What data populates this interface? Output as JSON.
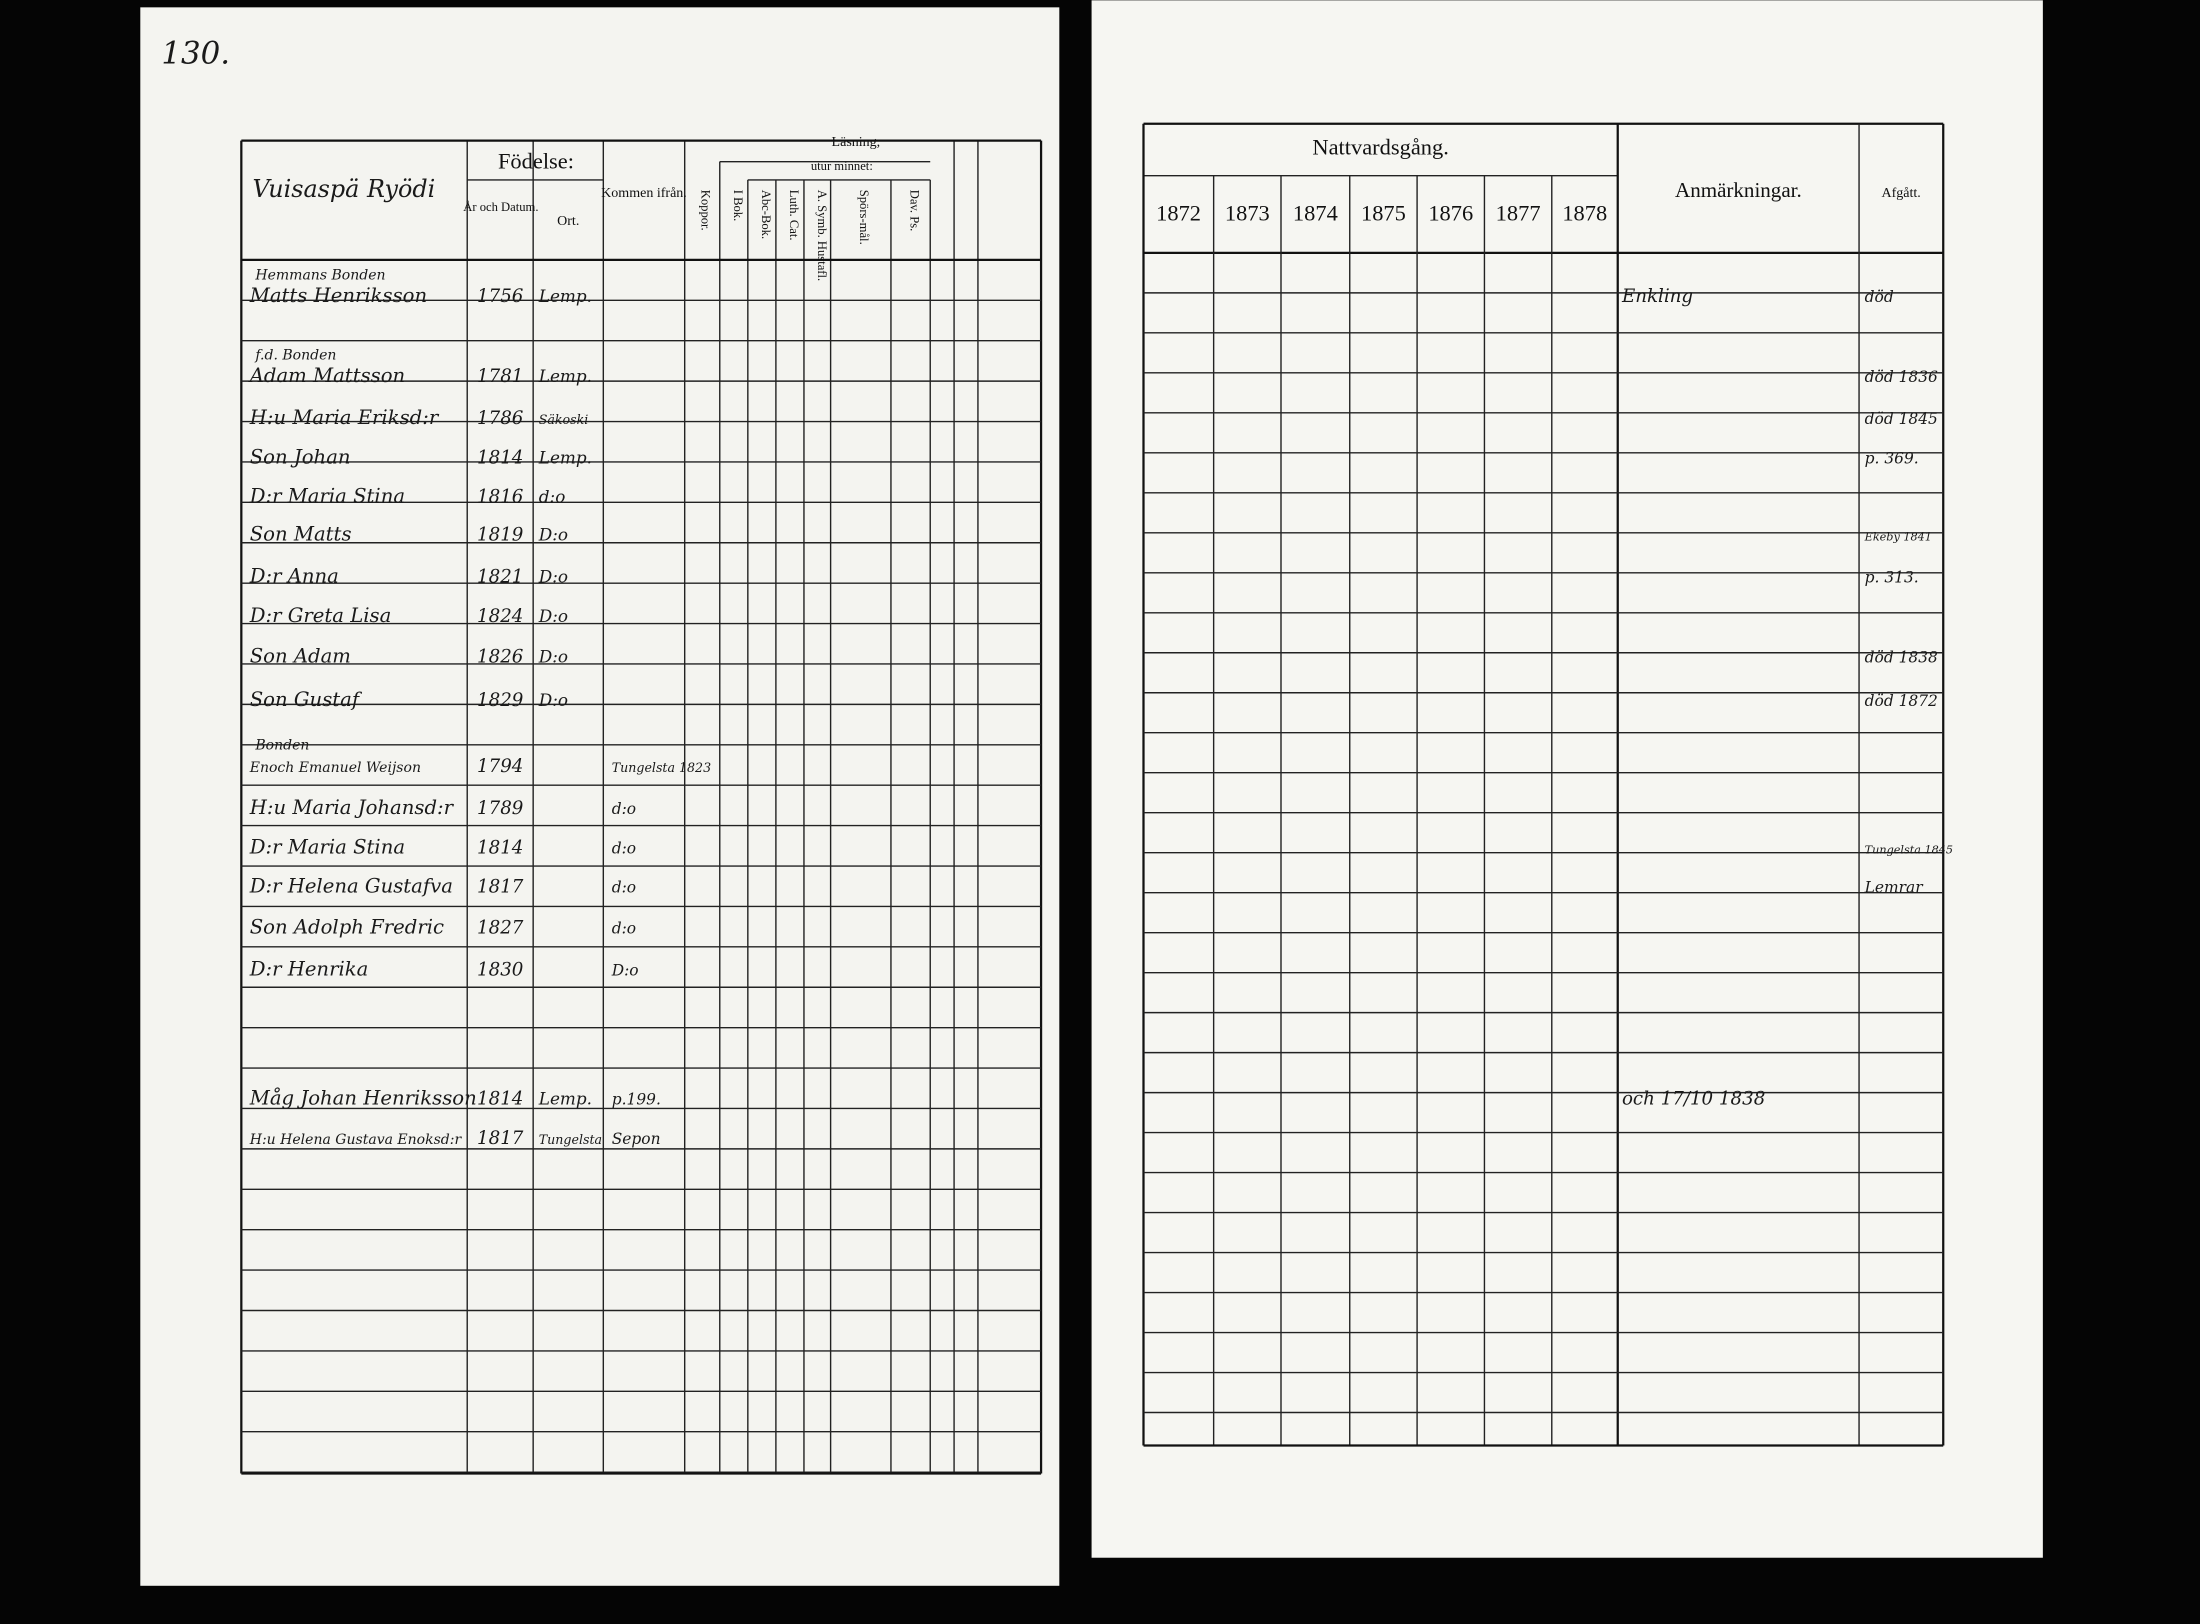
{
  "page_number": "130.",
  "left": {
    "place": "Vuisaspä Ryödi",
    "headers": {
      "birth": "Födelse:",
      "date": "År och Datum.",
      "ort": "Ort.",
      "from": "Kommen ifrån.",
      "koppor": "Koppor.",
      "reading": "Läsning,",
      "memory": "utur minnet:",
      "ibok": "I Bok.",
      "abc": "Abc-Bok.",
      "luth": "Luth. Cat.",
      "symb": "A. Symb. Hustafl.",
      "spors": "Spörs-mål.",
      "dav": "Dav. Ps."
    },
    "rows": [
      {
        "title": "Hemmans Bonden",
        "name": "Matts Henriksson",
        "year": "1756",
        "place": "Lemp."
      },
      {
        "title": "f.d. Bonden",
        "name": "Adam Mattsson",
        "year": "1781",
        "place": "Lemp."
      },
      {
        "name": "H:u Maria Eriksd:r",
        "year": "1786",
        "place": "Säkoski"
      },
      {
        "name": "Son Johan",
        "year": "1814",
        "place": "Lemp."
      },
      {
        "name": "D:r Maria Stina",
        "year": "1816",
        "place": "d:o"
      },
      {
        "name": "Son Matts",
        "year": "1819",
        "place": "D:o"
      },
      {
        "name": "D:r Anna",
        "year": "1821",
        "place": "D:o"
      },
      {
        "name": "D:r Greta Lisa",
        "year": "1824",
        "place": "D:o"
      },
      {
        "name": "Son Adam",
        "year": "1826",
        "place": "D:o"
      },
      {
        "name": "Son Gustaf",
        "year": "1829",
        "place": "D:o"
      },
      {
        "title": "Bonden",
        "name": "Enoch Emanuel Weijson",
        "year": "1794",
        "from": "Tungelsta 1823"
      },
      {
        "name": "H:u Maria Johansd:r",
        "year": "1789",
        "from": "d:o"
      },
      {
        "name": "D:r Maria Stina",
        "year": "1814",
        "from": "d:o"
      },
      {
        "name": "D:r Helena Gustafva",
        "year": "1817",
        "from": "d:o"
      },
      {
        "name": "Son Adolph Fredric",
        "year": "1827",
        "from": "d:o"
      },
      {
        "name": "D:r Henrika",
        "year": "1830",
        "from": "D:o"
      },
      {
        "name": "Måg Johan Henriksson",
        "year": "1814",
        "place": "Lemp.",
        "from": "p.199."
      },
      {
        "name": "H:u Helena Gustava Enoksd:r",
        "year": "1817",
        "place": "Tungelsta",
        "from": "Sepon"
      }
    ]
  },
  "right": {
    "title": "Nattvardsgång.",
    "years": [
      "1872",
      "1873",
      "1874",
      "1875",
      "1876",
      "1877",
      "1878"
    ],
    "remarks_header": "Anmärkningar.",
    "left_header": "Afgått.",
    "rows": [
      {
        "remark": "Enkling",
        "left": "död"
      },
      {
        "left": "död 1836"
      },
      {
        "left": "död 1845"
      },
      {
        "left": "p. 369."
      },
      {},
      {
        "left": "Ekeby 1841"
      },
      {
        "left": "p. 313."
      },
      {},
      {
        "left": "död 1838"
      },
      {
        "left": "död 1872"
      },
      {},
      {},
      {
        "left": "Tungelsta 1845"
      },
      {
        "left": "Lemrar"
      },
      {},
      {},
      {
        "remark": "och 17/10 1838"
      },
      {}
    ]
  }
}
